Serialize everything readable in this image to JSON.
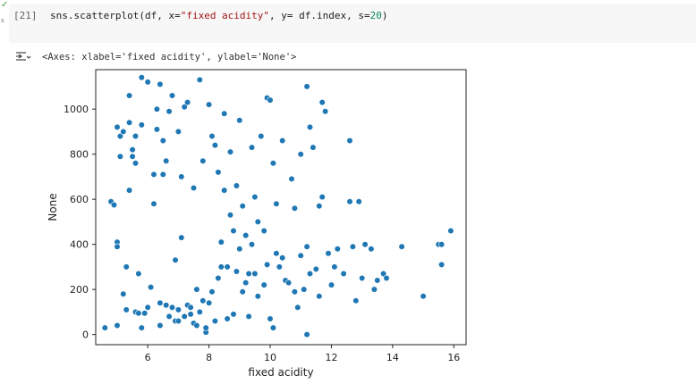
{
  "cell": {
    "exec_count": "[21]",
    "code_parts": [
      "sns.scatterplot(df, x=",
      "\"fixed acidity\"",
      ", y= df.index, s=",
      "20",
      ")"
    ],
    "status_icon": "check-icon",
    "run_time": "s"
  },
  "output": {
    "text": "<Axes: xlabel='fixed acidity', ylabel='None'>",
    "icon": "output-toggle-icon"
  },
  "chart_data": {
    "type": "scatter",
    "xlabel": "fixed acidity",
    "ylabel": "None",
    "xlim": [
      4.3,
      16.4
    ],
    "ylim": [
      -45,
      1175
    ],
    "xticks": [
      6,
      8,
      10,
      12,
      14,
      16
    ],
    "yticks": [
      0,
      200,
      400,
      600,
      800,
      1000
    ],
    "grid": false,
    "marker_color": "#1f77b4",
    "marker_edge": "#ffffff",
    "points": [
      [
        4.6,
        30
      ],
      [
        4.8,
        590
      ],
      [
        4.9,
        575
      ],
      [
        5.0,
        40
      ],
      [
        5.0,
        410
      ],
      [
        5.0,
        390
      ],
      [
        5.0,
        920
      ],
      [
        5.1,
        790
      ],
      [
        5.1,
        880
      ],
      [
        5.2,
        900
      ],
      [
        5.2,
        180
      ],
      [
        5.3,
        300
      ],
      [
        5.3,
        110
      ],
      [
        5.4,
        640
      ],
      [
        5.4,
        940
      ],
      [
        5.4,
        1060
      ],
      [
        5.5,
        820
      ],
      [
        5.5,
        790
      ],
      [
        5.6,
        100
      ],
      [
        5.6,
        760
      ],
      [
        5.6,
        880
      ],
      [
        5.7,
        95
      ],
      [
        5.7,
        270
      ],
      [
        5.8,
        1140
      ],
      [
        5.8,
        930
      ],
      [
        5.8,
        30
      ],
      [
        5.9,
        95
      ],
      [
        6.0,
        120
      ],
      [
        6.0,
        1120
      ],
      [
        6.1,
        210
      ],
      [
        6.2,
        580
      ],
      [
        6.2,
        710
      ],
      [
        6.3,
        910
      ],
      [
        6.3,
        1000
      ],
      [
        6.4,
        140
      ],
      [
        6.4,
        40
      ],
      [
        6.4,
        1110
      ],
      [
        6.5,
        860
      ],
      [
        6.5,
        710
      ],
      [
        6.6,
        770
      ],
      [
        6.6,
        130
      ],
      [
        6.7,
        80
      ],
      [
        6.7,
        990
      ],
      [
        6.8,
        1060
      ],
      [
        6.8,
        120
      ],
      [
        6.9,
        60
      ],
      [
        6.9,
        330
      ],
      [
        7.0,
        110
      ],
      [
        7.0,
        900
      ],
      [
        7.0,
        60
      ],
      [
        7.1,
        700
      ],
      [
        7.1,
        430
      ],
      [
        7.2,
        1010
      ],
      [
        7.2,
        80
      ],
      [
        7.3,
        1030
      ],
      [
        7.3,
        130
      ],
      [
        7.4,
        90
      ],
      [
        7.4,
        120
      ],
      [
        7.5,
        650
      ],
      [
        7.5,
        50
      ],
      [
        7.6,
        200
      ],
      [
        7.6,
        40
      ],
      [
        7.7,
        1130
      ],
      [
        7.7,
        100
      ],
      [
        7.8,
        770
      ],
      [
        7.8,
        150
      ],
      [
        7.9,
        10
      ],
      [
        7.9,
        30
      ],
      [
        8.0,
        1020
      ],
      [
        8.0,
        140
      ],
      [
        8.1,
        880
      ],
      [
        8.1,
        190
      ],
      [
        8.2,
        60
      ],
      [
        8.2,
        840
      ],
      [
        8.3,
        720
      ],
      [
        8.3,
        250
      ],
      [
        8.4,
        410
      ],
      [
        8.4,
        300
      ],
      [
        8.5,
        980
      ],
      [
        8.5,
        640
      ],
      [
        8.6,
        300
      ],
      [
        8.6,
        70
      ],
      [
        8.7,
        810
      ],
      [
        8.7,
        530
      ],
      [
        8.8,
        460
      ],
      [
        8.8,
        90
      ],
      [
        8.9,
        280
      ],
      [
        8.9,
        660
      ],
      [
        9.0,
        380
      ],
      [
        9.0,
        950
      ],
      [
        9.1,
        190
      ],
      [
        9.1,
        570
      ],
      [
        9.2,
        440
      ],
      [
        9.2,
        230
      ],
      [
        9.3,
        270
      ],
      [
        9.3,
        80
      ],
      [
        9.4,
        830
      ],
      [
        9.4,
        400
      ],
      [
        9.5,
        610
      ],
      [
        9.5,
        270
      ],
      [
        9.6,
        170
      ],
      [
        9.6,
        500
      ],
      [
        9.7,
        880
      ],
      [
        9.8,
        220
      ],
      [
        9.8,
        460
      ],
      [
        9.9,
        1050
      ],
      [
        9.9,
        310
      ],
      [
        10.0,
        1040
      ],
      [
        10.0,
        70
      ],
      [
        10.1,
        30
      ],
      [
        10.1,
        760
      ],
      [
        10.2,
        580
      ],
      [
        10.2,
        360
      ],
      [
        10.3,
        300
      ],
      [
        10.4,
        340
      ],
      [
        10.4,
        860
      ],
      [
        10.5,
        240
      ],
      [
        10.6,
        230
      ],
      [
        10.7,
        690
      ],
      [
        10.8,
        560
      ],
      [
        10.8,
        190
      ],
      [
        10.9,
        120
      ],
      [
        11.0,
        800
      ],
      [
        11.0,
        350
      ],
      [
        11.1,
        200
      ],
      [
        11.2,
        1100
      ],
      [
        11.2,
        0
      ],
      [
        11.2,
        390
      ],
      [
        11.3,
        920
      ],
      [
        11.3,
        270
      ],
      [
        11.4,
        830
      ],
      [
        11.5,
        290
      ],
      [
        11.6,
        570
      ],
      [
        11.6,
        170
      ],
      [
        11.7,
        610
      ],
      [
        11.7,
        1030
      ],
      [
        11.8,
        990
      ],
      [
        11.9,
        360
      ],
      [
        12.0,
        220
      ],
      [
        12.1,
        300
      ],
      [
        12.2,
        380
      ],
      [
        12.4,
        270
      ],
      [
        12.6,
        860
      ],
      [
        12.6,
        590
      ],
      [
        12.7,
        390
      ],
      [
        12.8,
        150
      ],
      [
        12.9,
        590
      ],
      [
        13.0,
        250
      ],
      [
        13.1,
        400
      ],
      [
        13.3,
        380
      ],
      [
        13.4,
        200
      ],
      [
        13.5,
        240
      ],
      [
        13.7,
        270
      ],
      [
        13.8,
        250
      ],
      [
        14.3,
        390
      ],
      [
        15.0,
        170
      ],
      [
        15.5,
        400
      ],
      [
        15.6,
        400
      ],
      [
        15.6,
        310
      ],
      [
        15.9,
        460
      ]
    ]
  }
}
